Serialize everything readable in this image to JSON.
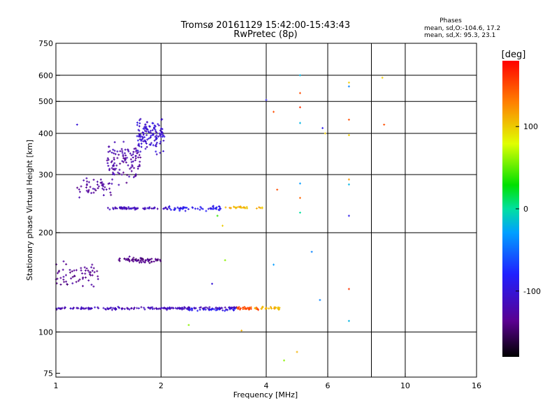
{
  "chart_data": {
    "type": "scatter",
    "title_line1": "Tromsø 20161129 15:42:00-15:43:43",
    "title_line2": "RwPretec (8p)",
    "phases_header": "Phases",
    "phases_o": "mean, sd,O:-104.6, 17.2",
    "phases_x": "mean, sd,X:  95.3, 23.1",
    "xlabel": "Frequency [MHz]",
    "ylabel": "Stationary phase Virtual Height [km]",
    "x_scale": "log",
    "y_scale": "log",
    "xlim": [
      1,
      16
    ],
    "ylim": [
      73,
      750
    ],
    "x_ticks": [
      1,
      2,
      4,
      6,
      10,
      16
    ],
    "x_gridlines": [
      2,
      4,
      6,
      8,
      10
    ],
    "y_ticks": [
      75,
      100,
      200,
      300,
      400,
      500,
      600,
      750
    ],
    "y_gridlines": [
      100,
      200,
      300,
      400,
      500,
      600
    ],
    "grid": true,
    "colorbar": {
      "label": "[deg]",
      "range": [
        -180,
        180
      ],
      "ticks": [
        100,
        0,
        -100
      ]
    },
    "traces": [
      {
        "f_range": [
          1.0,
          3.3
        ],
        "h": 118,
        "h_spread": 1.5,
        "n": 190,
        "phase": -115
      },
      {
        "f_range": [
          2.4,
          3.3
        ],
        "h": 117,
        "h_spread": 1.5,
        "n": 30,
        "phase": -90
      },
      {
        "f_range": [
          3.3,
          3.8
        ],
        "h": 118,
        "h_spread": 2,
        "n": 30,
        "phase": 150
      },
      {
        "f_range": [
          3.7,
          4.4
        ],
        "h": 118,
        "h_spread": 2,
        "n": 30,
        "phase": 110
      },
      {
        "f_range": [
          1.4,
          2.1
        ],
        "h": 237,
        "h_spread": 3,
        "n": 60,
        "phase": -115
      },
      {
        "f_range": [
          2.1,
          3.0
        ],
        "h": 237,
        "h_spread": 5,
        "n": 55,
        "phase": -90
      },
      {
        "f_range": [
          3.0,
          3.9
        ],
        "h": 238,
        "h_spread": 3,
        "n": 25,
        "phase": 110
      },
      {
        "f_range": [
          1.5,
          2.0
        ],
        "h": 165,
        "h_spread": 5,
        "n": 60,
        "phase": -140
      },
      {
        "f_range": [
          1.15,
          1.45
        ],
        "h": 275,
        "h_spread": 25,
        "n": 45,
        "phase": -130
      },
      {
        "f_range": [
          1.4,
          1.75
        ],
        "h": 330,
        "h_spread": 60,
        "n": 110,
        "phase": -125
      },
      {
        "f_range": [
          1.7,
          2.05
        ],
        "h": 400,
        "h_spread": 70,
        "n": 130,
        "phase": -105
      },
      {
        "f_range": [
          1.0,
          1.35
        ],
        "h": 150,
        "h_spread": 20,
        "n": 60,
        "phase": -135
      }
    ],
    "scatter_points": [
      {
        "x": 5.0,
        "y": 600,
        "phase": -20
      },
      {
        "x": 5.0,
        "y": 530,
        "phase": 150
      },
      {
        "x": 5.0,
        "y": 480,
        "phase": 160
      },
      {
        "x": 5.0,
        "y": 430,
        "phase": -20
      },
      {
        "x": 4.2,
        "y": 465,
        "phase": 150
      },
      {
        "x": 4.0,
        "y": 505,
        "phase": -90
      },
      {
        "x": 6.9,
        "y": 570,
        "phase": 100
      },
      {
        "x": 6.9,
        "y": 555,
        "phase": -40
      },
      {
        "x": 6.9,
        "y": 440,
        "phase": 150
      },
      {
        "x": 6.9,
        "y": 395,
        "phase": 100
      },
      {
        "x": 6.9,
        "y": 290,
        "phase": 120
      },
      {
        "x": 6.9,
        "y": 280,
        "phase": -20
      },
      {
        "x": 6.9,
        "y": 225,
        "phase": -90
      },
      {
        "x": 6.9,
        "y": 135,
        "phase": 160
      },
      {
        "x": 6.9,
        "y": 108,
        "phase": -20
      },
      {
        "x": 8.6,
        "y": 590,
        "phase": 100
      },
      {
        "x": 8.7,
        "y": 425,
        "phase": 150
      },
      {
        "x": 5.9,
        "y": 400,
        "phase": 100
      },
      {
        "x": 5.8,
        "y": 415,
        "phase": -90
      },
      {
        "x": 4.2,
        "y": 160,
        "phase": -30
      },
      {
        "x": 5.4,
        "y": 175,
        "phase": -40
      },
      {
        "x": 5.7,
        "y": 125,
        "phase": -40
      },
      {
        "x": 4.5,
        "y": 82,
        "phase": 60
      },
      {
        "x": 4.9,
        "y": 87,
        "phase": 110
      },
      {
        "x": 3.4,
        "y": 101,
        "phase": 110
      },
      {
        "x": 2.4,
        "y": 105,
        "phase": 60
      },
      {
        "x": 5.0,
        "y": 282,
        "phase": -30
      },
      {
        "x": 5.0,
        "y": 255,
        "phase": 140
      },
      {
        "x": 5.0,
        "y": 230,
        "phase": 0
      },
      {
        "x": 4.3,
        "y": 270,
        "phase": 150
      },
      {
        "x": 1.15,
        "y": 425,
        "phase": -100
      },
      {
        "x": 2.9,
        "y": 225,
        "phase": 40
      },
      {
        "x": 2.8,
        "y": 140,
        "phase": -100
      },
      {
        "x": 3.05,
        "y": 165,
        "phase": 60
      },
      {
        "x": 3.0,
        "y": 210,
        "phase": 100
      }
    ]
  }
}
